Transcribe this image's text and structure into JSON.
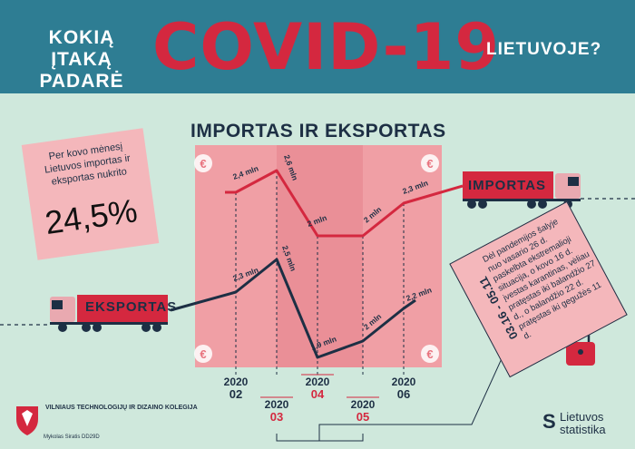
{
  "header": {
    "question_start": "KOKIĄ ĮTAKĄ PADARĖ",
    "covid": "COVID-19",
    "question_end": "LIETUVOJE?"
  },
  "callout": {
    "text": "Per kovo mėnesį Lietuvos importas ir eksportas nukrito",
    "percent": "24,5%"
  },
  "note": {
    "dates": "03.16 - 05.11",
    "text": "Dėl pandemijos šalyje nuo vasario 26 d. paskelbta ekstremalioji situacija, o kovo 16 d. įvestas karantinas, vėliau pratęstas iki balandžio 27 d., o balandžio 22 d. pratęstas iki gegužės 11 d."
  },
  "trucks": {
    "import_label": "IMPORTAS",
    "export_label": "EKSPORTAS"
  },
  "logos": {
    "college": "VILNIAUS TECHNOLOGIJŲ IR DIZAINO KOLEGIJA",
    "author": "Mykolas Siratis DD29D",
    "statistics": "Lietuvos statistika"
  },
  "chart_data": {
    "type": "line",
    "title": "IMPORTAS IR EKSPORTAS",
    "categories": [
      "2020 02",
      "2020 03",
      "2020 04",
      "2020 05",
      "2020 06"
    ],
    "series": [
      {
        "name": "IMPORTAS",
        "values": [
          2.4,
          2.6,
          2.0,
          2.0,
          2.3
        ],
        "labels": [
          "2,4 mln",
          "2,6 mln",
          "2 mln",
          "2 mln",
          "2,3 mln"
        ],
        "color": "#d4283f"
      },
      {
        "name": "EKSPORTAS",
        "values": [
          2.3,
          2.5,
          1.9,
          2.0,
          2.2
        ],
        "labels": [
          "2,3 mln",
          "2,5 mln",
          "1,9 mln",
          "2 mln",
          "2,2 mln"
        ],
        "color": "#1d2f44"
      }
    ],
    "currency_symbol": "€",
    "highlight_color": "#f4b7bb",
    "period_color": "#e68a93"
  }
}
